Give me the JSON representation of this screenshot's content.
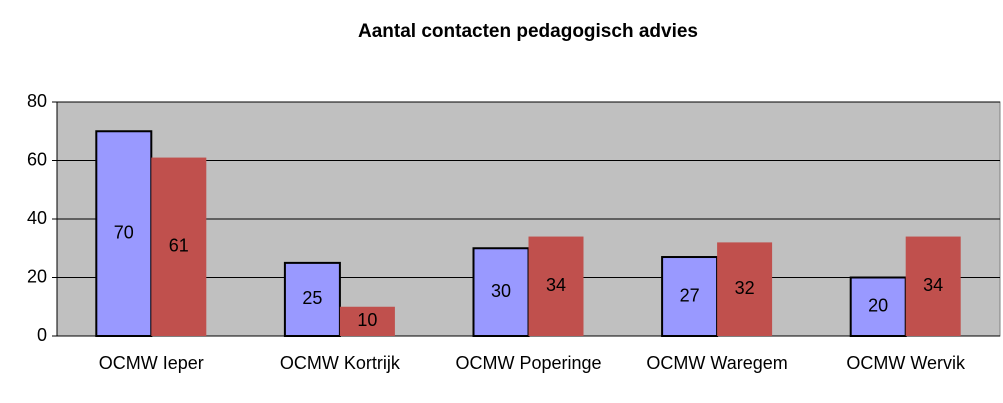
{
  "chart_data": {
    "type": "bar",
    "title": "Aantal contacten pedagogisch advies",
    "categories": [
      "OCMW Ieper",
      "OCMW Kortrijk",
      "OCMW Poperinge",
      "OCMW Waregem",
      "OCMW Wervik"
    ],
    "series": [
      {
        "color": "#9999ff",
        "values": [
          70,
          25,
          30,
          27,
          20
        ]
      },
      {
        "color": "#c0504d",
        "values": [
          61,
          10,
          34,
          32,
          34
        ]
      }
    ],
    "ylim": [
      0,
      80
    ],
    "yticks": [
      0,
      20,
      40,
      60,
      80
    ],
    "grid": true
  }
}
